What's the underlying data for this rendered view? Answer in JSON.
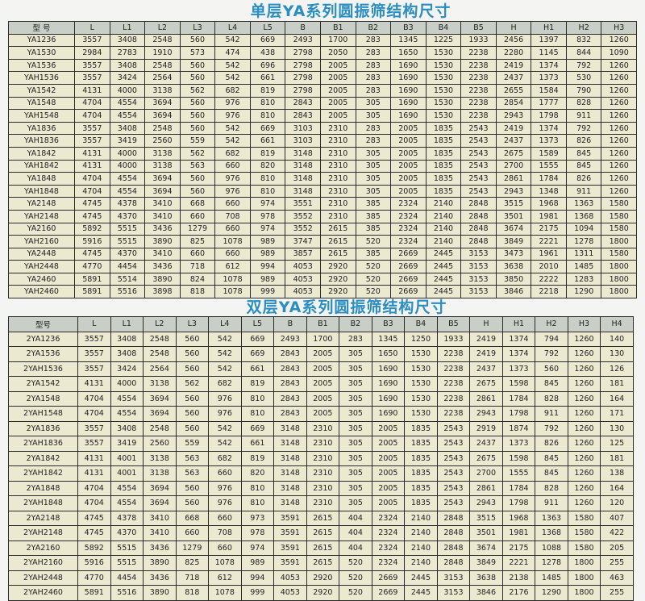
{
  "table1": {
    "title": "单层YA系列圆振筛结构尺寸",
    "headers": [
      "型 号",
      "L",
      "L1",
      "L2",
      "L3",
      "L4",
      "L5",
      "B",
      "B1",
      "B2",
      "B3",
      "B4",
      "B5",
      "H",
      "H1",
      "H2",
      "H3"
    ],
    "rows": [
      [
        "YA1236",
        "3557",
        "3408",
        "2548",
        "560",
        "542",
        "669",
        "2493",
        "1700",
        "283",
        "1345",
        "1225",
        "1933",
        "2456",
        "1397",
        "832",
        "1260"
      ],
      [
        "YA1530",
        "2984",
        "2783",
        "1910",
        "573",
        "474",
        "438",
        "2798",
        "2050",
        "283",
        "1650",
        "1530",
        "2238",
        "2280",
        "1145",
        "844",
        "1090"
      ],
      [
        "YA1536",
        "3557",
        "3408",
        "2548",
        "560",
        "542",
        "696",
        "2798",
        "2005",
        "283",
        "1690",
        "1530",
        "2238",
        "2419",
        "1374",
        "792",
        "1260"
      ],
      [
        "YAH1536",
        "3557",
        "3424",
        "2564",
        "560",
        "542",
        "661",
        "2798",
        "2005",
        "283",
        "1690",
        "1530",
        "2238",
        "2437",
        "1373",
        "530",
        "1260"
      ],
      [
        "YA1542",
        "4131",
        "4000",
        "3138",
        "562",
        "682",
        "819",
        "2798",
        "2005",
        "283",
        "1690",
        "1530",
        "2238",
        "2655",
        "1584",
        "790",
        "1260"
      ],
      [
        "YA1548",
        "4704",
        "4554",
        "3694",
        "560",
        "976",
        "810",
        "2843",
        "2005",
        "305",
        "1690",
        "1530",
        "2238",
        "2854",
        "1777",
        "828",
        "1260"
      ],
      [
        "YAH1548",
        "4704",
        "4554",
        "3694",
        "560",
        "976",
        "810",
        "2843",
        "2005",
        "305",
        "1690",
        "1530",
        "2238",
        "2943",
        "1798",
        "911",
        "1260"
      ],
      [
        "YA1836",
        "3557",
        "3408",
        "2548",
        "560",
        "542",
        "669",
        "3103",
        "2310",
        "283",
        "2005",
        "1835",
        "2543",
        "2419",
        "1374",
        "792",
        "1260"
      ],
      [
        "YAH1836",
        "3557",
        "3419",
        "2560",
        "559",
        "542",
        "661",
        "3103",
        "2310",
        "283",
        "2005",
        "1835",
        "2543",
        "2437",
        "1373",
        "826",
        "1260"
      ],
      [
        "YA1842",
        "4131",
        "4000",
        "3138",
        "562",
        "682",
        "819",
        "3148",
        "2310",
        "305",
        "2005",
        "1835",
        "2543",
        "2675",
        "1589",
        "845",
        "1260"
      ],
      [
        "YAH1842",
        "4131",
        "4000",
        "3138",
        "563",
        "660",
        "820",
        "3148",
        "2310",
        "305",
        "2005",
        "1835",
        "2543",
        "2700",
        "1555",
        "845",
        "1260"
      ],
      [
        "YA1848",
        "4704",
        "4554",
        "3694",
        "560",
        "976",
        "810",
        "3148",
        "2310",
        "305",
        "2005",
        "1835",
        "2543",
        "2861",
        "1784",
        "826",
        "1260"
      ],
      [
        "YAH1848",
        "4704",
        "4554",
        "3694",
        "560",
        "976",
        "810",
        "3148",
        "2310",
        "305",
        "2005",
        "1835",
        "2543",
        "2943",
        "1348",
        "911",
        "1260"
      ],
      [
        "YA2148",
        "4745",
        "4378",
        "3410",
        "668",
        "660",
        "974",
        "3551",
        "2310",
        "385",
        "2324",
        "2140",
        "2848",
        "3515",
        "1968",
        "1363",
        "1580"
      ],
      [
        "YAH2148",
        "4745",
        "4370",
        "3410",
        "660",
        "708",
        "978",
        "3552",
        "2310",
        "385",
        "2324",
        "2140",
        "2848",
        "3501",
        "1981",
        "1368",
        "1580"
      ],
      [
        "YA2160",
        "5892",
        "5515",
        "3436",
        "1279",
        "660",
        "974",
        "3552",
        "2615",
        "385",
        "2324",
        "2140",
        "2848",
        "3674",
        "2175",
        "1094",
        "1580"
      ],
      [
        "YAH2160",
        "5916",
        "5515",
        "3890",
        "825",
        "1078",
        "989",
        "3747",
        "2615",
        "520",
        "2324",
        "2140",
        "2848",
        "3849",
        "2221",
        "1278",
        "1800"
      ],
      [
        "YA2448",
        "4745",
        "4370",
        "3410",
        "660",
        "660",
        "989",
        "3857",
        "2615",
        "385",
        "2669",
        "2445",
        "3153",
        "3473",
        "1961",
        "1311",
        "1580"
      ],
      [
        "YAH2448",
        "4770",
        "4454",
        "3436",
        "718",
        "612",
        "994",
        "4053",
        "2920",
        "520",
        "2669",
        "2445",
        "3153",
        "3638",
        "2010",
        "1485",
        "1800"
      ],
      [
        "YA2460",
        "5891",
        "5514",
        "3890",
        "824",
        "1078",
        "989",
        "4053",
        "2920",
        "520",
        "2669",
        "2445",
        "3153",
        "3850",
        "2222",
        "1283",
        "1800"
      ],
      [
        "YAH2460",
        "5891",
        "5516",
        "3898",
        "818",
        "1078",
        "999",
        "4053",
        "2920",
        "520",
        "2669",
        "2445",
        "3153",
        "3846",
        "2218",
        "1290",
        "1800"
      ]
    ]
  },
  "table2": {
    "title": "双层YA系列圆振筛结构尺寸",
    "headers": [
      "型号",
      "L",
      "L1",
      "L2",
      "L3",
      "L4",
      "L5",
      "B",
      "B1",
      "B2",
      "B3",
      "B4",
      "B5",
      "H",
      "H1",
      "H2",
      "H3",
      "H4"
    ],
    "rows": [
      [
        "2YA1236",
        "3557",
        "3408",
        "2548",
        "560",
        "542",
        "669",
        "2493",
        "1700",
        "283",
        "1345",
        "1250",
        "1933",
        "2419",
        "1374",
        "794",
        "1260",
        "140"
      ],
      [
        "2YA1536",
        "3557",
        "3408",
        "2548",
        "560",
        "542",
        "669",
        "2843",
        "2005",
        "305",
        "1650",
        "1530",
        "2238",
        "2419",
        "1374",
        "792",
        "1260",
        "130"
      ],
      [
        "2YAH1536",
        "3557",
        "3424",
        "2564",
        "560",
        "542",
        "661",
        "2843",
        "2005",
        "305",
        "1690",
        "1530",
        "2238",
        "2437",
        "1373",
        "560",
        "1260",
        "126"
      ],
      [
        "2YA1542",
        "4131",
        "4000",
        "3138",
        "562",
        "682",
        "819",
        "2843",
        "2005",
        "305",
        "1690",
        "1530",
        "2238",
        "2675",
        "1598",
        "845",
        "1260",
        "181"
      ],
      [
        "2YA1548",
        "4704",
        "4554",
        "3694",
        "560",
        "976",
        "810",
        "2843",
        "2005",
        "305",
        "1690",
        "1530",
        "2238",
        "2861",
        "1784",
        "828",
        "1260",
        "164"
      ],
      [
        "2YAH1548",
        "4704",
        "4554",
        "3694",
        "560",
        "976",
        "810",
        "2843",
        "2005",
        "305",
        "1690",
        "1530",
        "2238",
        "2943",
        "1798",
        "911",
        "1260",
        "171"
      ],
      [
        "2YA1836",
        "3557",
        "3408",
        "2548",
        "560",
        "542",
        "669",
        "3148",
        "2310",
        "305",
        "2005",
        "1835",
        "2543",
        "2919",
        "1874",
        "792",
        "1260",
        "130"
      ],
      [
        "2YAH1836",
        "3557",
        "3419",
        "2560",
        "559",
        "542",
        "661",
        "3148",
        "2310",
        "305",
        "2005",
        "1835",
        "2543",
        "2437",
        "1373",
        "826",
        "1260",
        "125"
      ],
      [
        "2YA1842",
        "4131",
        "4001",
        "3138",
        "563",
        "682",
        "819",
        "3148",
        "2310",
        "305",
        "2005",
        "1835",
        "2543",
        "2675",
        "1598",
        "845",
        "1260",
        "181"
      ],
      [
        "2YAH1842",
        "4131",
        "4001",
        "3138",
        "563",
        "660",
        "820",
        "3148",
        "2310",
        "305",
        "2005",
        "1835",
        "2543",
        "2700",
        "1555",
        "845",
        "1260",
        "138"
      ],
      [
        "2YA1848",
        "4704",
        "4554",
        "3694",
        "560",
        "976",
        "810",
        "3148",
        "2310",
        "305",
        "2005",
        "1835",
        "2543",
        "2861",
        "1784",
        "828",
        "1260",
        "164"
      ],
      [
        "2YAH1848",
        "4704",
        "4554",
        "3694",
        "560",
        "976",
        "810",
        "3148",
        "2310",
        "305",
        "2005",
        "1835",
        "2543",
        "2943",
        "1798",
        "911",
        "1260",
        "120"
      ],
      [
        "2YA2148",
        "4745",
        "4378",
        "3410",
        "668",
        "660",
        "973",
        "3591",
        "2615",
        "404",
        "2324",
        "2140",
        "2848",
        "3515",
        "1968",
        "1363",
        "1580",
        "407"
      ],
      [
        "2YAH2148",
        "4745",
        "4370",
        "3410",
        "660",
        "708",
        "978",
        "3591",
        "2615",
        "404",
        "2324",
        "2140",
        "2848",
        "3501",
        "1981",
        "1368",
        "1580",
        "422"
      ],
      [
        "2YA2160",
        "5892",
        "5515",
        "3436",
        "1279",
        "660",
        "974",
        "3591",
        "2615",
        "404",
        "2324",
        "2140",
        "2848",
        "3674",
        "2175",
        "1088",
        "1580",
        "205"
      ],
      [
        "2YAH2160",
        "5916",
        "5515",
        "3890",
        "825",
        "1078",
        "989",
        "3591",
        "2615",
        "520",
        "2324",
        "2140",
        "2848",
        "3849",
        "2221",
        "1278",
        "1800",
        "255"
      ],
      [
        "2YAH2448",
        "4770",
        "4454",
        "3436",
        "718",
        "612",
        "994",
        "4053",
        "2920",
        "520",
        "2669",
        "2445",
        "3153",
        "3638",
        "2138",
        "1485",
        "1800",
        "463"
      ],
      [
        "2YAH2460",
        "5891",
        "5516",
        "3890",
        "818",
        "1078",
        "999",
        "4053",
        "2920",
        "520",
        "2669",
        "2445",
        "3153",
        "3846",
        "2176",
        "1290",
        "1800",
        "255"
      ]
    ]
  },
  "colors": {
    "title": "#2a8fc0",
    "header_bg": "#c9cfc6",
    "cell_bg": "#ece9d1"
  }
}
